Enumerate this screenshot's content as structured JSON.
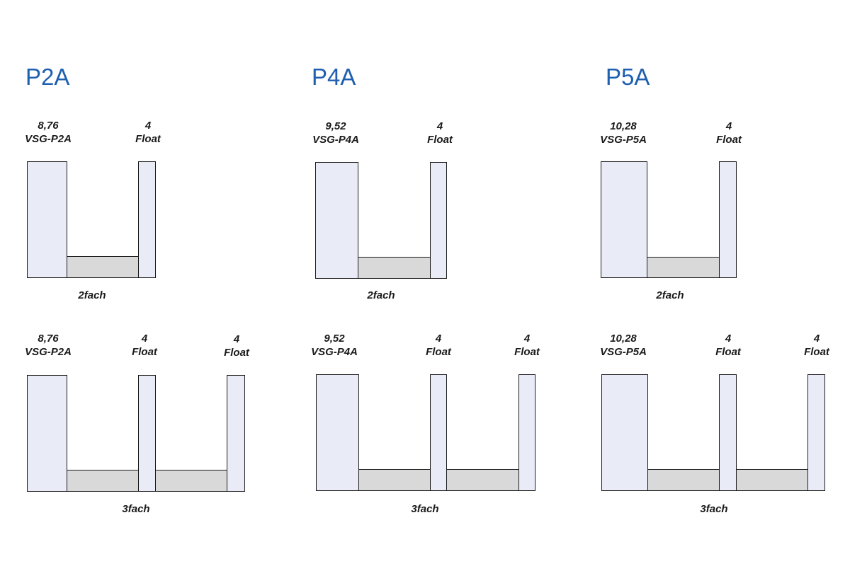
{
  "colors": {
    "title": "#1f5fb0",
    "pane_fill": "#e9ebf7",
    "gap_fill": "#d9d9d9",
    "line": "#1a1a1a"
  },
  "groups": [
    {
      "title": "P2A",
      "double": {
        "laminated_value": "8,76",
        "laminated_name": "VSG-P2A",
        "float_value": "4",
        "float_name": "Float",
        "caption": "2fach"
      },
      "triple": {
        "laminated_value": "8,76",
        "laminated_name": "VSG-P2A",
        "float1_value": "4",
        "float1_name": "Float",
        "float2_value": "4",
        "float2_name": "Float",
        "caption": "3fach"
      }
    },
    {
      "title": "P4A",
      "double": {
        "laminated_value": "9,52",
        "laminated_name": "VSG-P4A",
        "float_value": "4",
        "float_name": "Float",
        "caption": "2fach"
      },
      "triple": {
        "laminated_value": "9,52",
        "laminated_name": "VSG-P4A",
        "float1_value": "4",
        "float1_name": "Float",
        "float2_value": "4",
        "float2_name": "Float",
        "caption": "3fach"
      }
    },
    {
      "title": "P5A",
      "double": {
        "laminated_value": "10,28",
        "laminated_name": "VSG-P5A",
        "float_value": "4",
        "float_name": "Float",
        "caption": "2fach"
      },
      "triple": {
        "laminated_value": "10,28",
        "laminated_name": "VSG-P5A",
        "float1_value": "4",
        "float1_name": "Float",
        "float2_value": "4",
        "float2_name": "Float",
        "caption": "3fach"
      }
    }
  ]
}
